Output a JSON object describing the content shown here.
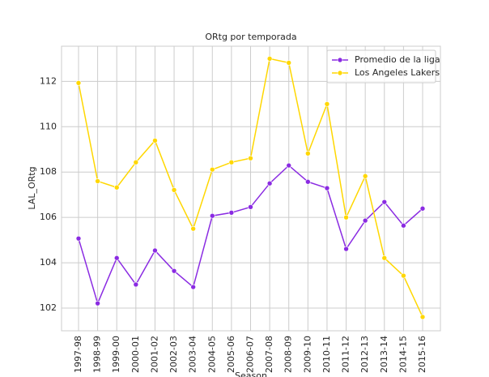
{
  "chart_data": {
    "type": "line",
    "title": "ORtg por temporada",
    "x_label": "Season",
    "y_label": "LAL_ORtg",
    "categories": [
      "1997-98",
      "1998-99",
      "1999-00",
      "2000-01",
      "2001-02",
      "2002-03",
      "2003-04",
      "2004-05",
      "2005-06",
      "2006-07",
      "2007-08",
      "2008-09",
      "2009-10",
      "2010-11",
      "2011-12",
      "2012-13",
      "2013-14",
      "2014-15",
      "2015-16"
    ],
    "series": [
      {
        "name": "Promedio de la liga",
        "color": "#8a2be2",
        "values": [
          105.07,
          102.21,
          104.21,
          103.04,
          104.54,
          103.64,
          102.93,
          106.07,
          106.21,
          106.46,
          107.5,
          108.29,
          107.57,
          107.29,
          104.61,
          105.86,
          106.68,
          105.64,
          106.39
        ]
      },
      {
        "name": "Los Angeles Lakers",
        "color": "#ffd700",
        "values": [
          111.93,
          107.6,
          107.32,
          108.43,
          109.39,
          107.21,
          105.5,
          108.11,
          108.43,
          108.61,
          113.0,
          112.82,
          108.82,
          111.0,
          106.0,
          107.82,
          104.21,
          103.43,
          101.61
        ]
      }
    ],
    "ylim": [
      101.0,
      113.55
    ],
    "yticks": [
      102,
      104,
      106,
      108,
      110,
      112
    ],
    "grid": true,
    "legend": "upper right"
  }
}
